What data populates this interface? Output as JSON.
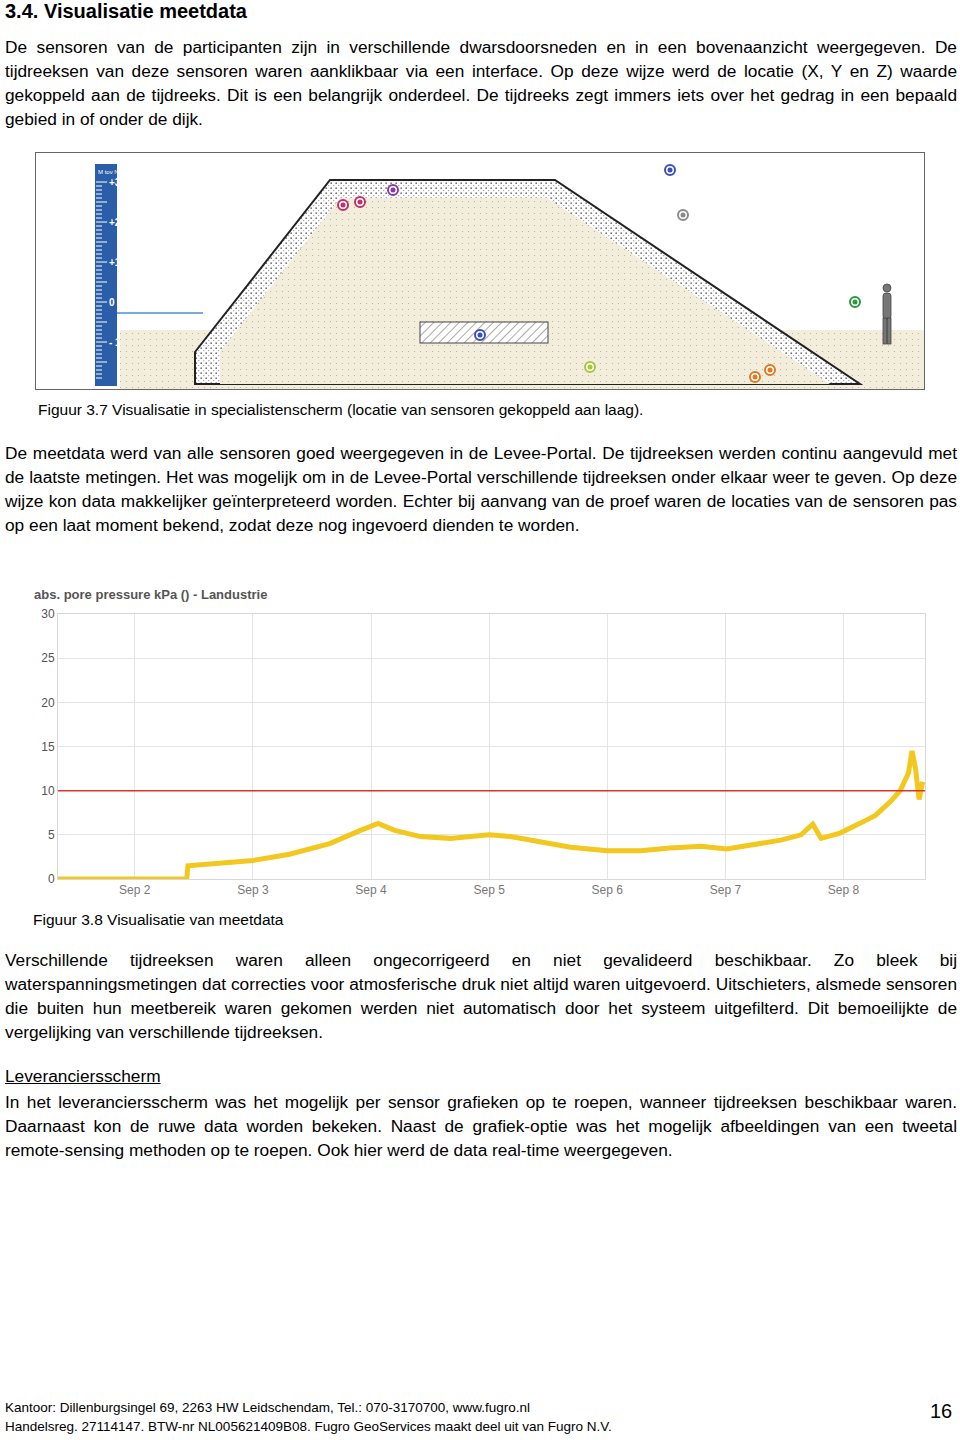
{
  "heading": "3.4.  Visualisatie meetdata",
  "paragraph_1": "De sensoren van de participanten zijn in verschillende dwarsdoorsneden en in een bovenaanzicht weergegeven. De tijdreeksen van deze sensoren waren aanklikbaar via een interface. Op deze wijze werd de locatie (X, Y en Z) waarde gekoppeld aan de tijdreeks. Dit is een belangrijk onderdeel. De tijdreeks zegt immers iets over het gedrag in een bepaald gebied in of onder de dijk.",
  "figure_3_7": {
    "ruler_title": "M tov NAP",
    "ruler_labels": [
      "+3",
      "+2",
      "+1",
      "0",
      "- 1"
    ],
    "caption": "Figuur 3.7 Visualisatie in specialistenscherm (locatie van sensoren gekoppeld aan laag)."
  },
  "paragraph_2": "De meetdata werd van alle sensoren goed weergegeven in de Levee-Portal. De tijdreeksen werden continu aangevuld met de laatste metingen. Het was mogelijk om in de Levee-Portal verschillende tijdreeksen onder elkaar weer te geven. Op deze wijze kon data makkelijker geïnterpreteerd worden. Echter bij aanvang van de proef waren de locaties van de sensoren pas op een laat moment bekend, zodat deze nog ingevoerd dienden te worden.",
  "chart_data": {
    "type": "line",
    "title": "abs. pore pressure kPa () - Landustrie",
    "x": [
      1.35,
      2.44,
      2.45,
      2.72,
      3.0,
      3.31,
      3.65,
      3.91,
      4.06,
      4.2,
      4.42,
      4.67,
      5.0,
      5.18,
      5.43,
      5.69,
      6.0,
      6.28,
      6.53,
      6.79,
      7.01,
      7.21,
      7.47,
      7.64,
      7.74,
      7.81,
      7.97,
      8.14,
      8.27,
      8.4,
      8.48,
      8.55,
      8.58,
      8.61,
      8.64,
      8.67
    ],
    "values": [
      0,
      0,
      1.5,
      1.8,
      2.1,
      2.8,
      4.0,
      5.5,
      6.3,
      5.5,
      4.8,
      4.6,
      5.0,
      4.8,
      4.2,
      3.6,
      3.2,
      3.2,
      3.5,
      3.7,
      3.4,
      3.8,
      4.4,
      5.0,
      6.2,
      4.6,
      5.2,
      6.3,
      7.2,
      8.8,
      10.0,
      12.0,
      14.5,
      12.5,
      9.0,
      11.0
    ],
    "color": "#f2c81e",
    "threshold": 10,
    "xlim": [
      1.35,
      8.69
    ],
    "xticks": [
      {
        "value": 2,
        "label": "Sep 2"
      },
      {
        "value": 3,
        "label": "Sep 3"
      },
      {
        "value": 4,
        "label": "Sep 4"
      },
      {
        "value": 5,
        "label": "Sep 5"
      },
      {
        "value": 6,
        "label": "Sep 6"
      },
      {
        "value": 7,
        "label": "Sep 7"
      },
      {
        "value": 8,
        "label": "Sep 8"
      }
    ],
    "ylim": [
      0,
      30
    ],
    "yticks": [
      0,
      5,
      10,
      15,
      20,
      25,
      30
    ],
    "grid": true
  },
  "figure_3_8_caption": "Figuur 3.8 Visualisatie van meetdata",
  "paragraph_3": "Verschillende tijdreeksen waren alleen ongecorrigeerd en niet gevalideerd beschikbaar. Zo bleek bij waterspanningsmetingen dat correcties voor atmosferische druk niet altijd waren uitgevoerd. Uitschieters, alsmede sensoren die buiten hun meetbereik waren gekomen werden niet automatisch door het systeem uitgefilterd. Dit bemoeilijkte de vergelijking van verschillende tijdreeksen.",
  "section": {
    "title": "Leveranciersscherm",
    "text": "In het leveranciersscherm was het mogelijk per sensor grafieken op te roepen, wanneer tijdreeksen beschikbaar waren. Daarnaast kon de ruwe data worden bekeken. Naast de grafiek-optie was het mogelijk afbeeldingen van een tweetal remote-sensing methoden op te roepen. Ook hier werd de data real-time weergegeven."
  },
  "footer": {
    "line_1": "Kantoor: Dillenburgsingel 69, 2263 HW Leidschendam, Tel.: 070-3170700, www.fugro.nl",
    "line_2": "Handelsreg. 27114147. BTW-nr NL005621409B08. Fugro GeoServices maakt deel uit van Fugro N.V.",
    "page": "16"
  }
}
